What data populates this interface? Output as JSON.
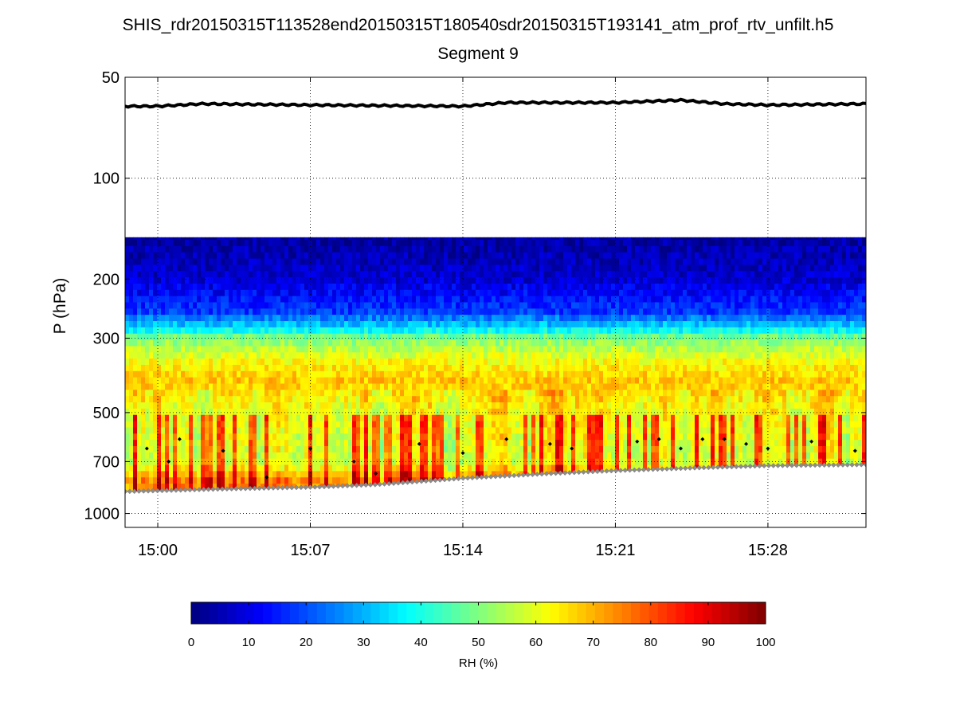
{
  "chart_data": {
    "type": "heatmap",
    "title": "SHIS_rdr20150315T113528end20150315T180540sdr20150315T193141_atm_prof_rtv_unfilt.h5",
    "subtitle": "Segment 9",
    "xlabel": "",
    "ylabel": "P (hPa)",
    "y_scale": "log",
    "y_reversed": true,
    "y_ticks": [
      50,
      100,
      200,
      300,
      500,
      700,
      1000
    ],
    "ylim": [
      50,
      1100
    ],
    "x_ticks": [
      "15:00",
      "15:07",
      "15:14",
      "15:21",
      "15:28"
    ],
    "xlim": [
      "14:58:30",
      "15:32:30"
    ],
    "grid": true,
    "colorbar": {
      "label": "RH (%)",
      "min": 0,
      "max": 100,
      "ticks": [
        0,
        10,
        20,
        30,
        40,
        50,
        60,
        70,
        80,
        90,
        100
      ],
      "colormap": "jet"
    },
    "data_top_pressure": 150,
    "rh_profile_approx": [
      {
        "p": 150,
        "rh": 3
      },
      {
        "p": 200,
        "rh": 8
      },
      {
        "p": 250,
        "rh": 18
      },
      {
        "p": 280,
        "rh": 35
      },
      {
        "p": 300,
        "rh": 50
      },
      {
        "p": 350,
        "rh": 62
      },
      {
        "p": 400,
        "rh": 68
      },
      {
        "p": 450,
        "rh": 65
      },
      {
        "p": 500,
        "rh": 62
      },
      {
        "p": 600,
        "rh": 60
      },
      {
        "p": 700,
        "rh": 58
      },
      {
        "p": 800,
        "rh": 75
      }
    ],
    "series": [
      {
        "line_style": "thick black line",
        "x": [
          "14:58:30",
          "15:00",
          "15:02",
          "15:07",
          "15:14",
          "15:16",
          "15:21",
          "15:24",
          "15:26",
          "15:28",
          "15:32:30"
        ],
        "y": [
          61,
          61,
          60,
          60.5,
          61,
          59.5,
          59.5,
          58.5,
          60,
          60.5,
          60
        ]
      },
      {
        "line_style": "gray diamond markers",
        "x": [
          "14:58:30",
          "15:03",
          "15:07",
          "15:10",
          "15:14",
          "15:18",
          "15:21",
          "15:25",
          "15:28",
          "15:32:30"
        ],
        "y": [
          860,
          845,
          835,
          820,
          785,
          760,
          745,
          730,
          720,
          715
        ]
      },
      {
        "line_style": "black dot markers",
        "x": [
          "14:59:30",
          "15:00:30",
          "15:01",
          "15:03",
          "15:05",
          "15:07",
          "15:09",
          "15:10",
          "15:12",
          "15:14",
          "15:16",
          "15:18",
          "15:19",
          "15:22",
          "15:23",
          "15:24",
          "15:25",
          "15:26",
          "15:27",
          "15:28",
          "15:30",
          "15:32"
        ],
        "y": [
          640,
          700,
          600,
          650,
          780,
          640,
          700,
          760,
          620,
          660,
          600,
          620,
          640,
          610,
          600,
          640,
          600,
          600,
          620,
          640,
          610,
          650
        ]
      }
    ]
  }
}
